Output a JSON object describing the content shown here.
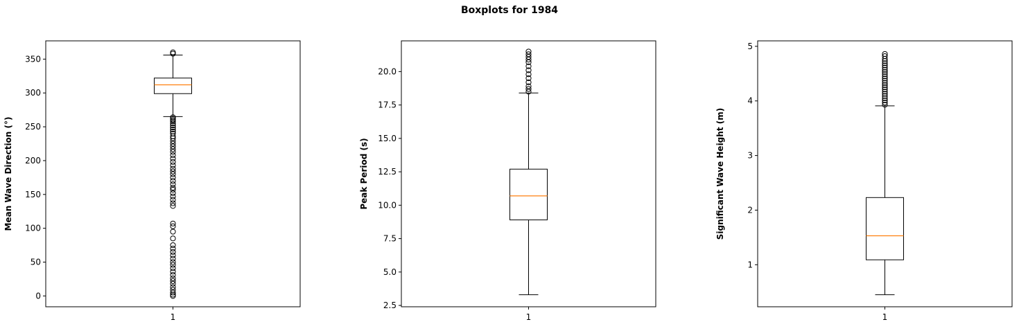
{
  "chart_data": {
    "title": "Boxplots for 1984",
    "panels": [
      {
        "type": "box",
        "ylabel": "Mean Wave Direction (°)",
        "category": "1",
        "ylim": [
          -16,
          377
        ],
        "yticks": [
          0,
          50,
          100,
          150,
          200,
          250,
          300,
          350
        ],
        "ytick_labels": [
          "0",
          "50",
          "100",
          "150",
          "200",
          "250",
          "300",
          "350"
        ],
        "stats": {
          "whisker_low": 265,
          "q1": 299,
          "median": 312,
          "q3": 322,
          "whisker_high": 356
        },
        "outliers": [
          0,
          2,
          5,
          9,
          13,
          18,
          22,
          26,
          31,
          36,
          41,
          46,
          50,
          55,
          60,
          65,
          70,
          75,
          85,
          95,
          103,
          107,
          133,
          137,
          142,
          147,
          152,
          157,
          160,
          165,
          170,
          175,
          180,
          184,
          188,
          193,
          198,
          203,
          208,
          213,
          217,
          221,
          225,
          229,
          233,
          236,
          240,
          243,
          246,
          249,
          252,
          255,
          258,
          260,
          262,
          264,
          358,
          360
        ]
      },
      {
        "type": "box",
        "ylabel": "Peak Period (s)",
        "category": "1",
        "ylim": [
          2.4,
          22.3
        ],
        "yticks": [
          2.5,
          5.0,
          7.5,
          10.0,
          12.5,
          15.0,
          17.5,
          20.0
        ],
        "ytick_labels": [
          "2.5",
          "5.0",
          "7.5",
          "10.0",
          "12.5",
          "15.0",
          "17.5",
          "20.0"
        ],
        "stats": {
          "whisker_low": 3.3,
          "q1": 8.9,
          "median": 10.7,
          "q3": 12.7,
          "whisker_high": 18.4
        },
        "outliers": [
          18.5,
          18.7,
          18.9,
          19.2,
          19.5,
          19.8,
          20.1,
          20.4,
          20.7,
          20.9,
          21.1,
          21.3,
          21.5
        ]
      },
      {
        "type": "box",
        "ylabel": "Significant Wave Height (m)",
        "category": "1",
        "ylim": [
          0.23,
          5.1
        ],
        "yticks": [
          1,
          2,
          3,
          4,
          5
        ],
        "ytick_labels": [
          "1",
          "2",
          "3",
          "4",
          "5"
        ],
        "stats": {
          "whisker_low": 0.45,
          "q1": 1.09,
          "median": 1.53,
          "q3": 2.23,
          "whisker_high": 3.91
        },
        "outliers": [
          3.93,
          3.97,
          4.01,
          4.05,
          4.09,
          4.13,
          4.17,
          4.21,
          4.25,
          4.29,
          4.33,
          4.37,
          4.41,
          4.45,
          4.49,
          4.53,
          4.57,
          4.61,
          4.65,
          4.69,
          4.73,
          4.77,
          4.82,
          4.86
        ]
      }
    ],
    "colors": {
      "box": "#000000",
      "median": "#ff7f0e",
      "axes": "#000000"
    }
  }
}
